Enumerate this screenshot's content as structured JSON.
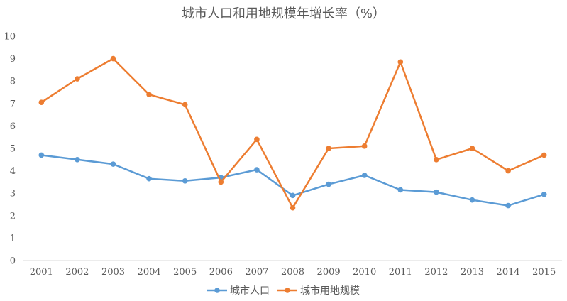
{
  "chart_data": {
    "type": "line",
    "title": "城市人口和用地规模年增长率（%）",
    "xlabel": "",
    "ylabel": "",
    "categories": [
      "2001",
      "2002",
      "2003",
      "2004",
      "2005",
      "2006",
      "2007",
      "2008",
      "2009",
      "2010",
      "2011",
      "2012",
      "2013",
      "2014",
      "2015"
    ],
    "ylim": [
      0,
      10
    ],
    "y_ticks": [
      "0",
      "1",
      "2",
      "3",
      "4",
      "5",
      "6",
      "7",
      "8",
      "9",
      "10"
    ],
    "grid": false,
    "legend_position": "bottom",
    "series": [
      {
        "name": "城市人口",
        "color": "#5B9BD5",
        "values": [
          4.7,
          4.5,
          4.3,
          3.65,
          3.55,
          3.7,
          4.05,
          2.9,
          3.4,
          3.8,
          3.15,
          3.05,
          2.7,
          2.45,
          2.95
        ]
      },
      {
        "name": "城市用地规模",
        "color": "#ED7D31",
        "values": [
          7.05,
          8.1,
          9.0,
          7.4,
          6.95,
          3.5,
          5.4,
          2.35,
          5.0,
          5.1,
          8.85,
          4.5,
          5.0,
          4.0,
          4.7
        ]
      }
    ]
  }
}
